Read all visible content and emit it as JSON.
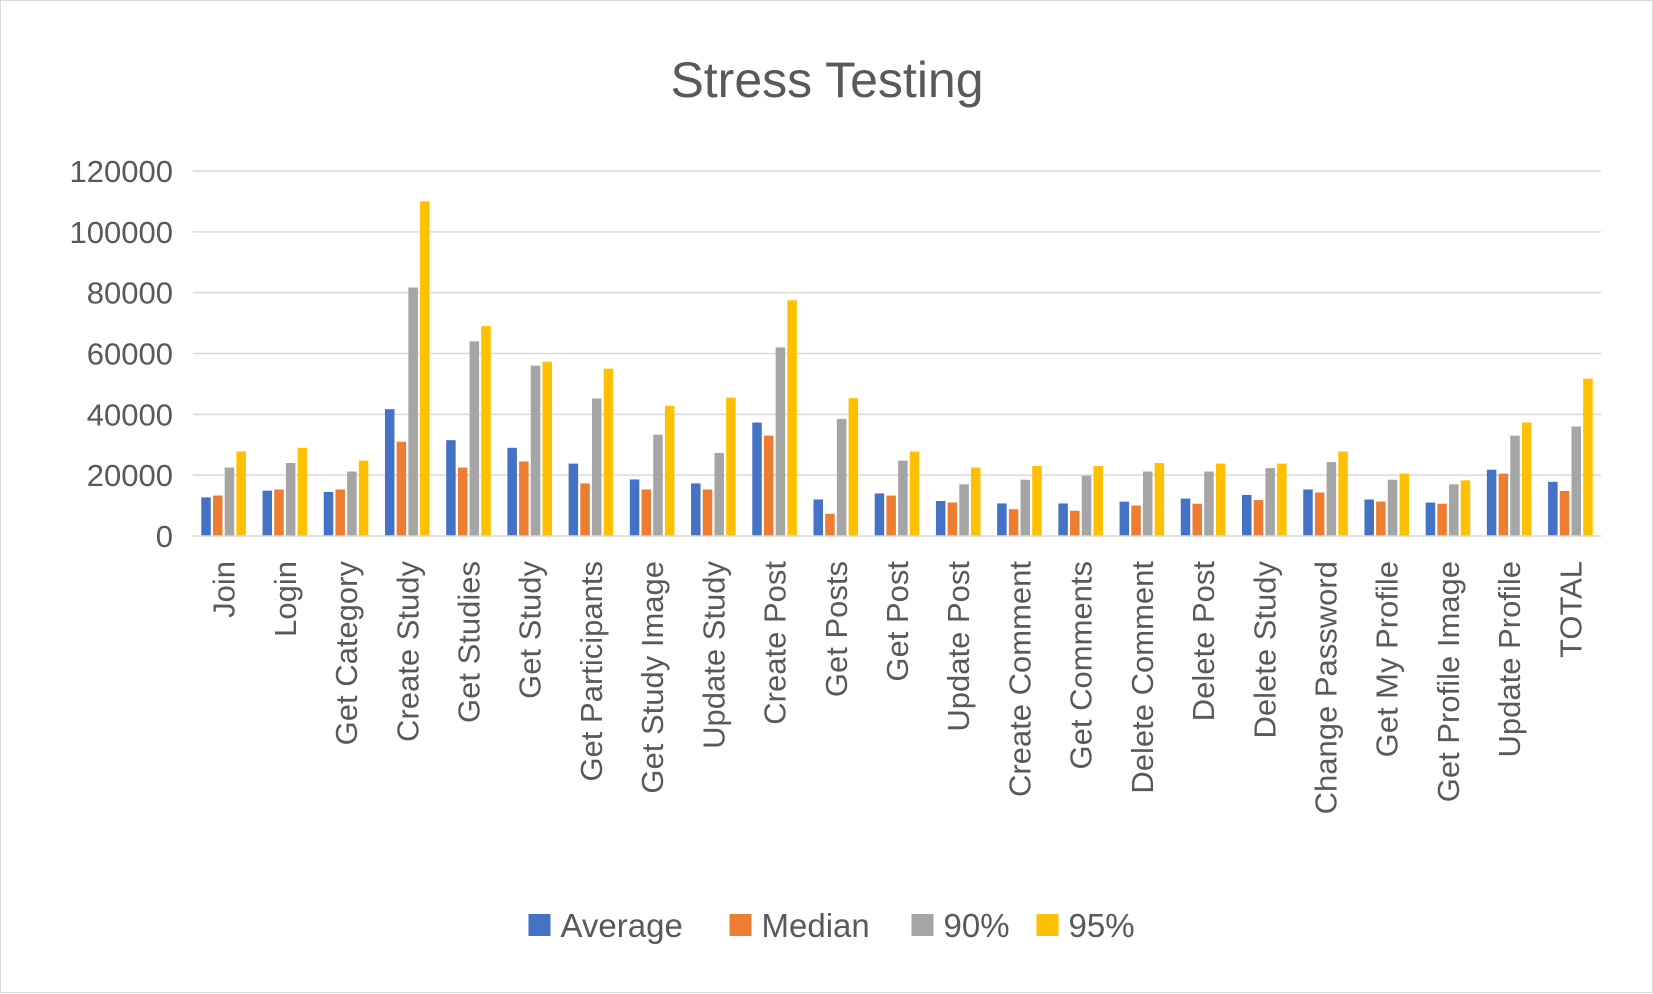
{
  "chart_data": {
    "type": "bar",
    "title": "Stress Testing",
    "xlabel": "",
    "ylabel": "",
    "ylim": [
      0,
      120000
    ],
    "yticks": [
      0,
      20000,
      40000,
      60000,
      80000,
      100000,
      120000
    ],
    "grid": true,
    "legend_position": "bottom",
    "categories": [
      "Join",
      "Login",
      "Get Category",
      "Create Study",
      "Get Studies",
      "Get Study",
      "Get Participants",
      "Get Study Image",
      "Update Study",
      "Create Post",
      "Get Posts",
      "Get Post",
      "Update Post",
      "Create Comment",
      "Get Comments",
      "Delete Comment",
      "Delete Post",
      "Delete Study",
      "Change Password",
      "Get My Profile",
      "Get Profile Image",
      "Update Profile",
      "TOTAL"
    ],
    "series": [
      {
        "name": "Average",
        "color": "#4472c4",
        "values": [
          12700,
          14900,
          14500,
          41700,
          31500,
          29000,
          23800,
          18600,
          17300,
          37300,
          12000,
          14000,
          11500,
          10700,
          10700,
          11300,
          12300,
          13500,
          15300,
          12000,
          11000,
          21800,
          17800
        ]
      },
      {
        "name": "Median",
        "color": "#ed7d31",
        "values": [
          13300,
          15300,
          15300,
          31000,
          22500,
          24500,
          17300,
          15300,
          15300,
          33000,
          7300,
          13300,
          11000,
          8800,
          8300,
          10000,
          10600,
          11800,
          14300,
          11300,
          10600,
          20500,
          14800
        ]
      },
      {
        "name": "90%",
        "color": "#a5a5a5",
        "values": [
          22500,
          24000,
          21200,
          81700,
          64000,
          56000,
          45200,
          33300,
          27300,
          62000,
          38500,
          24800,
          17000,
          18500,
          19800,
          21200,
          21200,
          22300,
          24300,
          18500,
          17000,
          33000,
          36000
        ]
      },
      {
        "name": "95%",
        "color": "#ffc000",
        "values": [
          27800,
          29000,
          24800,
          110000,
          69000,
          57300,
          55000,
          42800,
          45500,
          77500,
          45300,
          27800,
          22500,
          23000,
          23000,
          24000,
          23800,
          23800,
          27800,
          20500,
          18300,
          37300,
          51700
        ]
      }
    ]
  }
}
